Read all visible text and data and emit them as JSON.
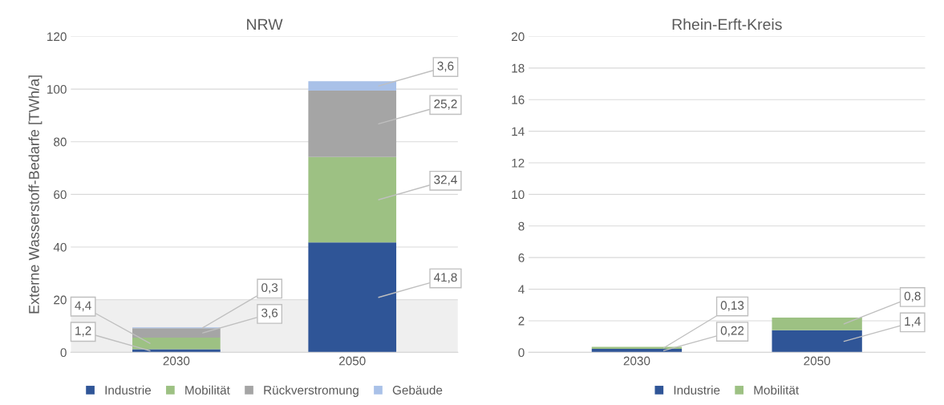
{
  "chart_data": [
    {
      "type": "bar",
      "title": "NRW",
      "ylabel": "Externe Wasserstoff-Bedarfe [TWh/a]",
      "categories": [
        "2030",
        "2050"
      ],
      "stacked": true,
      "series": [
        {
          "name": "Industrie",
          "color": "#2f5597",
          "values": [
            1.2,
            41.8
          ],
          "value_labels": [
            "1,2",
            "41,8"
          ]
        },
        {
          "name": "Mobilität",
          "color": "#9dc183",
          "values": [
            4.4,
            32.4
          ],
          "value_labels": [
            "4,4",
            "32,4"
          ]
        },
        {
          "name": "Rückverstromung",
          "color": "#a5a5a5",
          "values": [
            3.6,
            25.2
          ],
          "value_labels": [
            "3,6",
            "25,2"
          ]
        },
        {
          "name": "Gebäude",
          "color": "#a9c1e8",
          "values": [
            0.3,
            3.6
          ],
          "value_labels": [
            "0,3",
            "3,6"
          ]
        }
      ],
      "ylim": [
        0,
        120
      ],
      "yticks": [
        0,
        20,
        40,
        60,
        80,
        100,
        120
      ],
      "grid": "y",
      "legend": "bottom",
      "bands": [
        {
          "axis": "y",
          "from": 0,
          "to": 20,
          "color": "#efefef"
        }
      ]
    },
    {
      "type": "bar",
      "title": "Rhein-Erft-Kreis",
      "categories": [
        "2030",
        "2050"
      ],
      "stacked": true,
      "series": [
        {
          "name": "Industrie",
          "color": "#2f5597",
          "values": [
            0.22,
            1.4
          ],
          "value_labels": [
            "0,22",
            "1,4"
          ]
        },
        {
          "name": "Mobilität",
          "color": "#9dc183",
          "values": [
            0.13,
            0.8
          ],
          "value_labels": [
            "0,13",
            "0,8"
          ]
        }
      ],
      "ylim": [
        0,
        20
      ],
      "yticks": [
        0,
        2,
        4,
        6,
        8,
        10,
        12,
        14,
        16,
        18,
        20
      ],
      "grid": "y",
      "legend": "bottom"
    }
  ]
}
